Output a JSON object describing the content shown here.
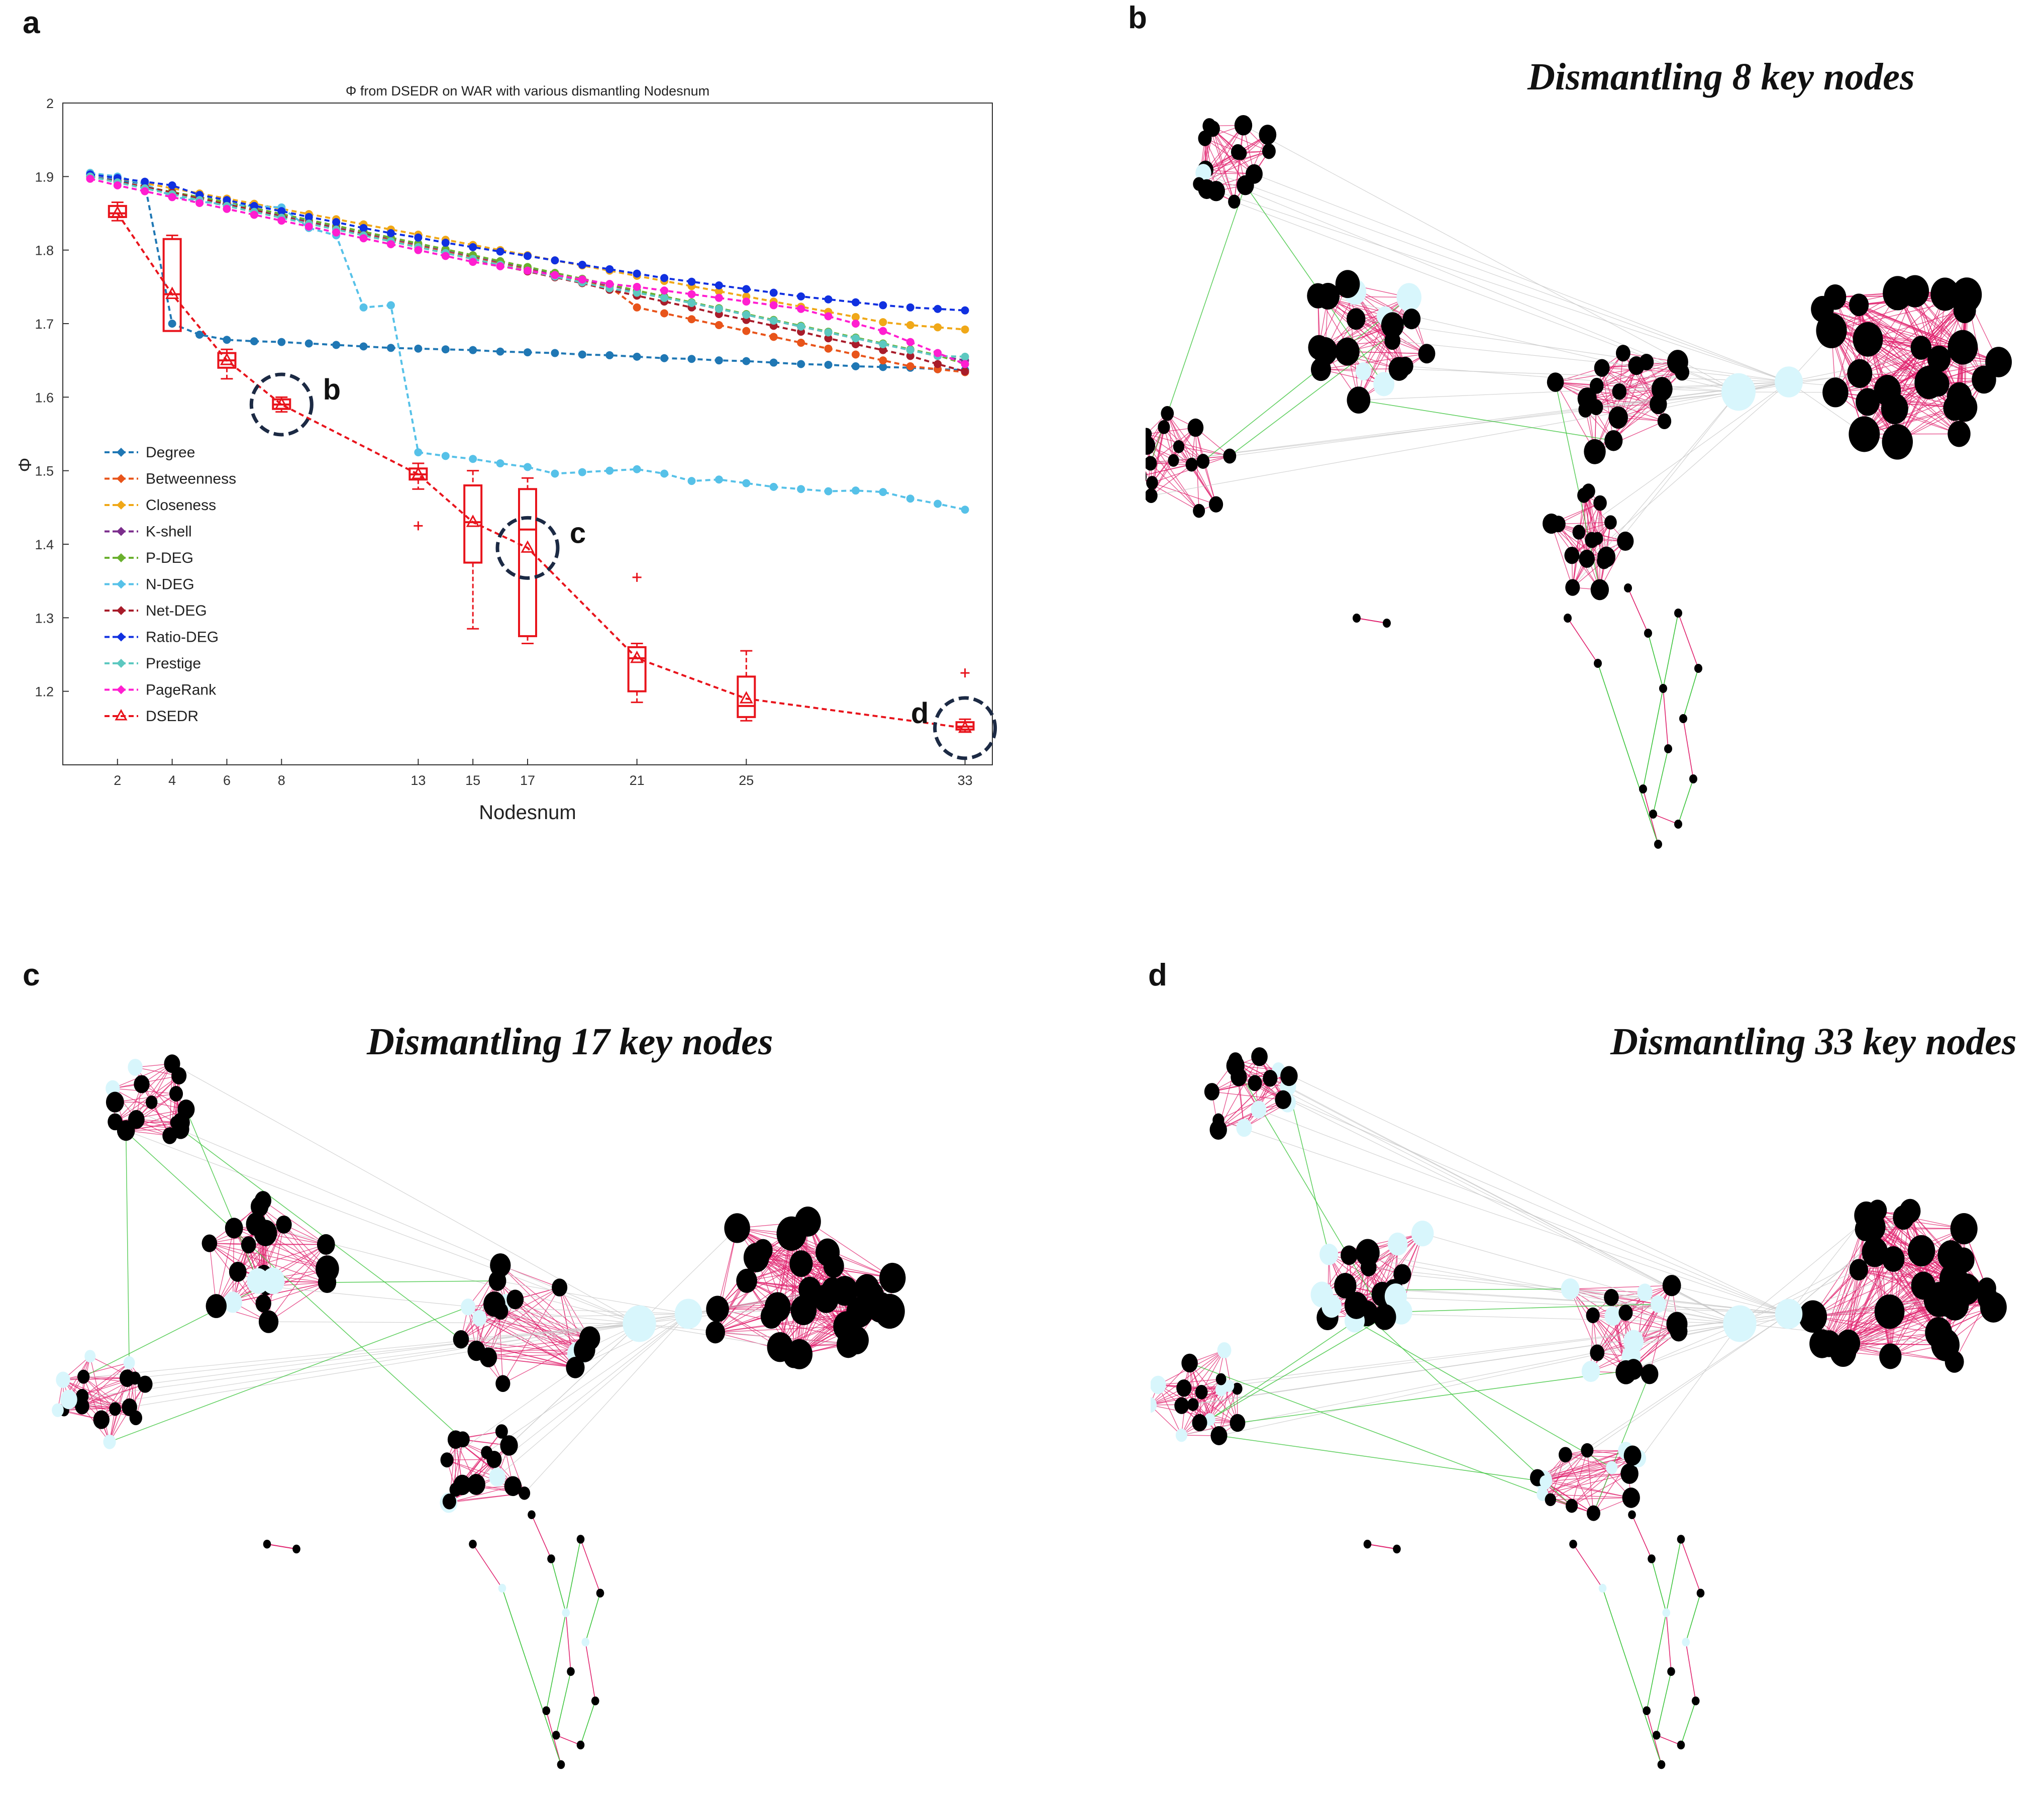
{
  "panels": {
    "a": {
      "letter": "a"
    },
    "b": {
      "letter": "b",
      "title": "Dismantling 8 key nodes"
    },
    "c": {
      "letter": "c",
      "title": "Dismantling 17 key nodes"
    },
    "d": {
      "letter": "d",
      "title": "Dismantling 33 key nodes"
    }
  },
  "callouts": [
    "b",
    "c",
    "d"
  ],
  "colors": {
    "node_core": "#000000",
    "node_removed": "#d8f6fc",
    "edge_intra": "#e0226e",
    "edge_inter": "#3cc43c",
    "edge_bridge": "#c8c8c8"
  },
  "chart_data": {
    "type": "line",
    "title": "Φ from DSEDR on WAR with various dismantling Nodesnum",
    "xlabel": "Nodesnum",
    "ylabel": "Φ",
    "xlim": [
      0,
      34
    ],
    "ylim": [
      1.1,
      2.0
    ],
    "xticks": [
      2,
      4,
      6,
      8,
      13,
      15,
      17,
      21,
      25,
      33
    ],
    "yticks": [
      1.2,
      1.3,
      1.4,
      1.5,
      1.6,
      1.7,
      1.8,
      1.9,
      2
    ],
    "legend_position": "bottom-left",
    "x": [
      1,
      2,
      3,
      4,
      5,
      6,
      7,
      8,
      9,
      10,
      11,
      12,
      13,
      14,
      15,
      16,
      17,
      18,
      19,
      20,
      21,
      22,
      23,
      24,
      25,
      26,
      27,
      28,
      29,
      30,
      31,
      32,
      33
    ],
    "series": [
      {
        "name": "Degree",
        "color": "#1f77b4",
        "values": [
          1.9,
          1.895,
          1.89,
          1.7,
          1.685,
          1.678,
          1.676,
          1.675,
          1.673,
          1.671,
          1.669,
          1.667,
          1.666,
          1.665,
          1.664,
          1.662,
          1.661,
          1.66,
          1.658,
          1.657,
          1.655,
          1.653,
          1.652,
          1.65,
          1.649,
          1.647,
          1.645,
          1.644,
          1.642,
          1.641,
          1.64,
          1.638,
          1.637
        ]
      },
      {
        "name": "Betweenness",
        "color": "#e8541a",
        "values": [
          1.9,
          1.893,
          1.885,
          1.877,
          1.87,
          1.862,
          1.854,
          1.846,
          1.838,
          1.83,
          1.822,
          1.814,
          1.806,
          1.798,
          1.79,
          1.782,
          1.774,
          1.766,
          1.758,
          1.75,
          1.722,
          1.714,
          1.706,
          1.698,
          1.69,
          1.682,
          1.674,
          1.666,
          1.658,
          1.65,
          1.642,
          1.638,
          1.634
        ]
      },
      {
        "name": "Closeness",
        "color": "#f0a818",
        "values": [
          1.905,
          1.898,
          1.891,
          1.884,
          1.877,
          1.87,
          1.863,
          1.856,
          1.849,
          1.842,
          1.835,
          1.828,
          1.821,
          1.814,
          1.807,
          1.8,
          1.793,
          1.786,
          1.779,
          1.772,
          1.765,
          1.758,
          1.751,
          1.744,
          1.737,
          1.73,
          1.723,
          1.716,
          1.709,
          1.702,
          1.698,
          1.695,
          1.692
        ]
      },
      {
        "name": "K-shell",
        "color": "#7b2d8c",
        "values": [
          1.9,
          1.893,
          1.886,
          1.879,
          1.872,
          1.864,
          1.856,
          1.848,
          1.84,
          1.832,
          1.824,
          1.816,
          1.808,
          1.8,
          1.792,
          1.784,
          1.776,
          1.768,
          1.76,
          1.752,
          1.744,
          1.736,
          1.728,
          1.72,
          1.712,
          1.704,
          1.696,
          1.688,
          1.68,
          1.672,
          1.664,
          1.656,
          1.65
        ]
      },
      {
        "name": "P-DEG",
        "color": "#6ab02e",
        "values": [
          1.9,
          1.893,
          1.886,
          1.879,
          1.872,
          1.865,
          1.857,
          1.849,
          1.841,
          1.833,
          1.825,
          1.817,
          1.809,
          1.801,
          1.793,
          1.785,
          1.777,
          1.769,
          1.761,
          1.753,
          1.745,
          1.737,
          1.729,
          1.721,
          1.713,
          1.705,
          1.697,
          1.689,
          1.681,
          1.673,
          1.665,
          1.657,
          1.645
        ]
      },
      {
        "name": "N-DEG",
        "color": "#56c1e8",
        "values": [
          1.905,
          1.9,
          1.89,
          1.873,
          1.866,
          1.862,
          1.86,
          1.858,
          1.83,
          1.82,
          1.722,
          1.725,
          1.525,
          1.52,
          1.516,
          1.51,
          1.505,
          1.496,
          1.498,
          1.5,
          1.502,
          1.496,
          1.486,
          1.488,
          1.483,
          1.478,
          1.475,
          1.472,
          1.473,
          1.471,
          1.462,
          1.455,
          1.447
        ]
      },
      {
        "name": "Net-DEG",
        "color": "#a81c2a",
        "values": [
          1.9,
          1.893,
          1.886,
          1.878,
          1.87,
          1.862,
          1.854,
          1.845,
          1.837,
          1.829,
          1.821,
          1.812,
          1.804,
          1.796,
          1.788,
          1.779,
          1.771,
          1.763,
          1.755,
          1.746,
          1.738,
          1.73,
          1.722,
          1.713,
          1.705,
          1.697,
          1.689,
          1.68,
          1.672,
          1.664,
          1.656,
          1.645,
          1.635
        ]
      },
      {
        "name": "Ratio-DEG",
        "color": "#1030e0",
        "values": [
          1.903,
          1.898,
          1.893,
          1.888,
          1.875,
          1.868,
          1.86,
          1.853,
          1.845,
          1.838,
          1.83,
          1.823,
          1.817,
          1.81,
          1.804,
          1.798,
          1.792,
          1.786,
          1.78,
          1.774,
          1.768,
          1.762,
          1.757,
          1.752,
          1.747,
          1.742,
          1.737,
          1.733,
          1.729,
          1.725,
          1.722,
          1.72,
          1.718
        ]
      },
      {
        "name": "Prestige",
        "color": "#5cc8c0",
        "values": [
          1.9,
          1.892,
          1.884,
          1.876,
          1.868,
          1.86,
          1.852,
          1.844,
          1.836,
          1.828,
          1.82,
          1.812,
          1.804,
          1.796,
          1.788,
          1.78,
          1.772,
          1.764,
          1.756,
          1.748,
          1.742,
          1.735,
          1.728,
          1.72,
          1.712,
          1.704,
          1.696,
          1.688,
          1.68,
          1.672,
          1.664,
          1.656,
          1.655
        ]
      },
      {
        "name": "PageRank",
        "color": "#ff1ed0",
        "values": [
          1.897,
          1.888,
          1.88,
          1.872,
          1.864,
          1.856,
          1.848,
          1.84,
          1.832,
          1.824,
          1.816,
          1.808,
          1.8,
          1.792,
          1.784,
          1.778,
          1.772,
          1.766,
          1.76,
          1.754,
          1.75,
          1.745,
          1.74,
          1.735,
          1.73,
          1.725,
          1.72,
          1.71,
          1.7,
          1.69,
          1.675,
          1.66,
          1.645
        ]
      },
      {
        "name": "DSEDR",
        "color": "#e8141c",
        "x": [
          2,
          4,
          6,
          8,
          13,
          15,
          17,
          21,
          25,
          33
        ],
        "values": [
          1.85,
          1.74,
          1.65,
          1.59,
          1.495,
          1.43,
          1.395,
          1.245,
          1.19,
          1.15
        ],
        "box": [
          {
            "x": 2,
            "min": 1.84,
            "q1": 1.845,
            "med": 1.85,
            "q3": 1.86,
            "max": 1.865
          },
          {
            "x": 4,
            "min": 1.69,
            "q1": 1.69,
            "med": 1.74,
            "q3": 1.815,
            "max": 1.82
          },
          {
            "x": 6,
            "min": 1.625,
            "q1": 1.64,
            "med": 1.65,
            "q3": 1.66,
            "max": 1.665
          },
          {
            "x": 8,
            "min": 1.58,
            "q1": 1.584,
            "med": 1.59,
            "q3": 1.597,
            "max": 1.6
          },
          {
            "x": 13,
            "min": 1.475,
            "q1": 1.488,
            "med": 1.495,
            "q3": 1.503,
            "max": 1.51,
            "outliers": [
              1.425
            ]
          },
          {
            "x": 15,
            "min": 1.285,
            "q1": 1.375,
            "med": 1.43,
            "q3": 1.48,
            "max": 1.5
          },
          {
            "x": 17,
            "min": 1.265,
            "q1": 1.275,
            "med": 1.42,
            "q3": 1.475,
            "max": 1.49
          },
          {
            "x": 21,
            "min": 1.185,
            "q1": 1.2,
            "med": 1.245,
            "q3": 1.26,
            "max": 1.265,
            "outliers": [
              1.355
            ]
          },
          {
            "x": 25,
            "min": 1.16,
            "q1": 1.165,
            "med": 1.18,
            "q3": 1.22,
            "max": 1.255
          },
          {
            "x": 33,
            "min": 1.145,
            "q1": 1.148,
            "med": 1.152,
            "q3": 1.158,
            "max": 1.162,
            "outliers": [
              1.225
            ]
          }
        ]
      }
    ]
  }
}
